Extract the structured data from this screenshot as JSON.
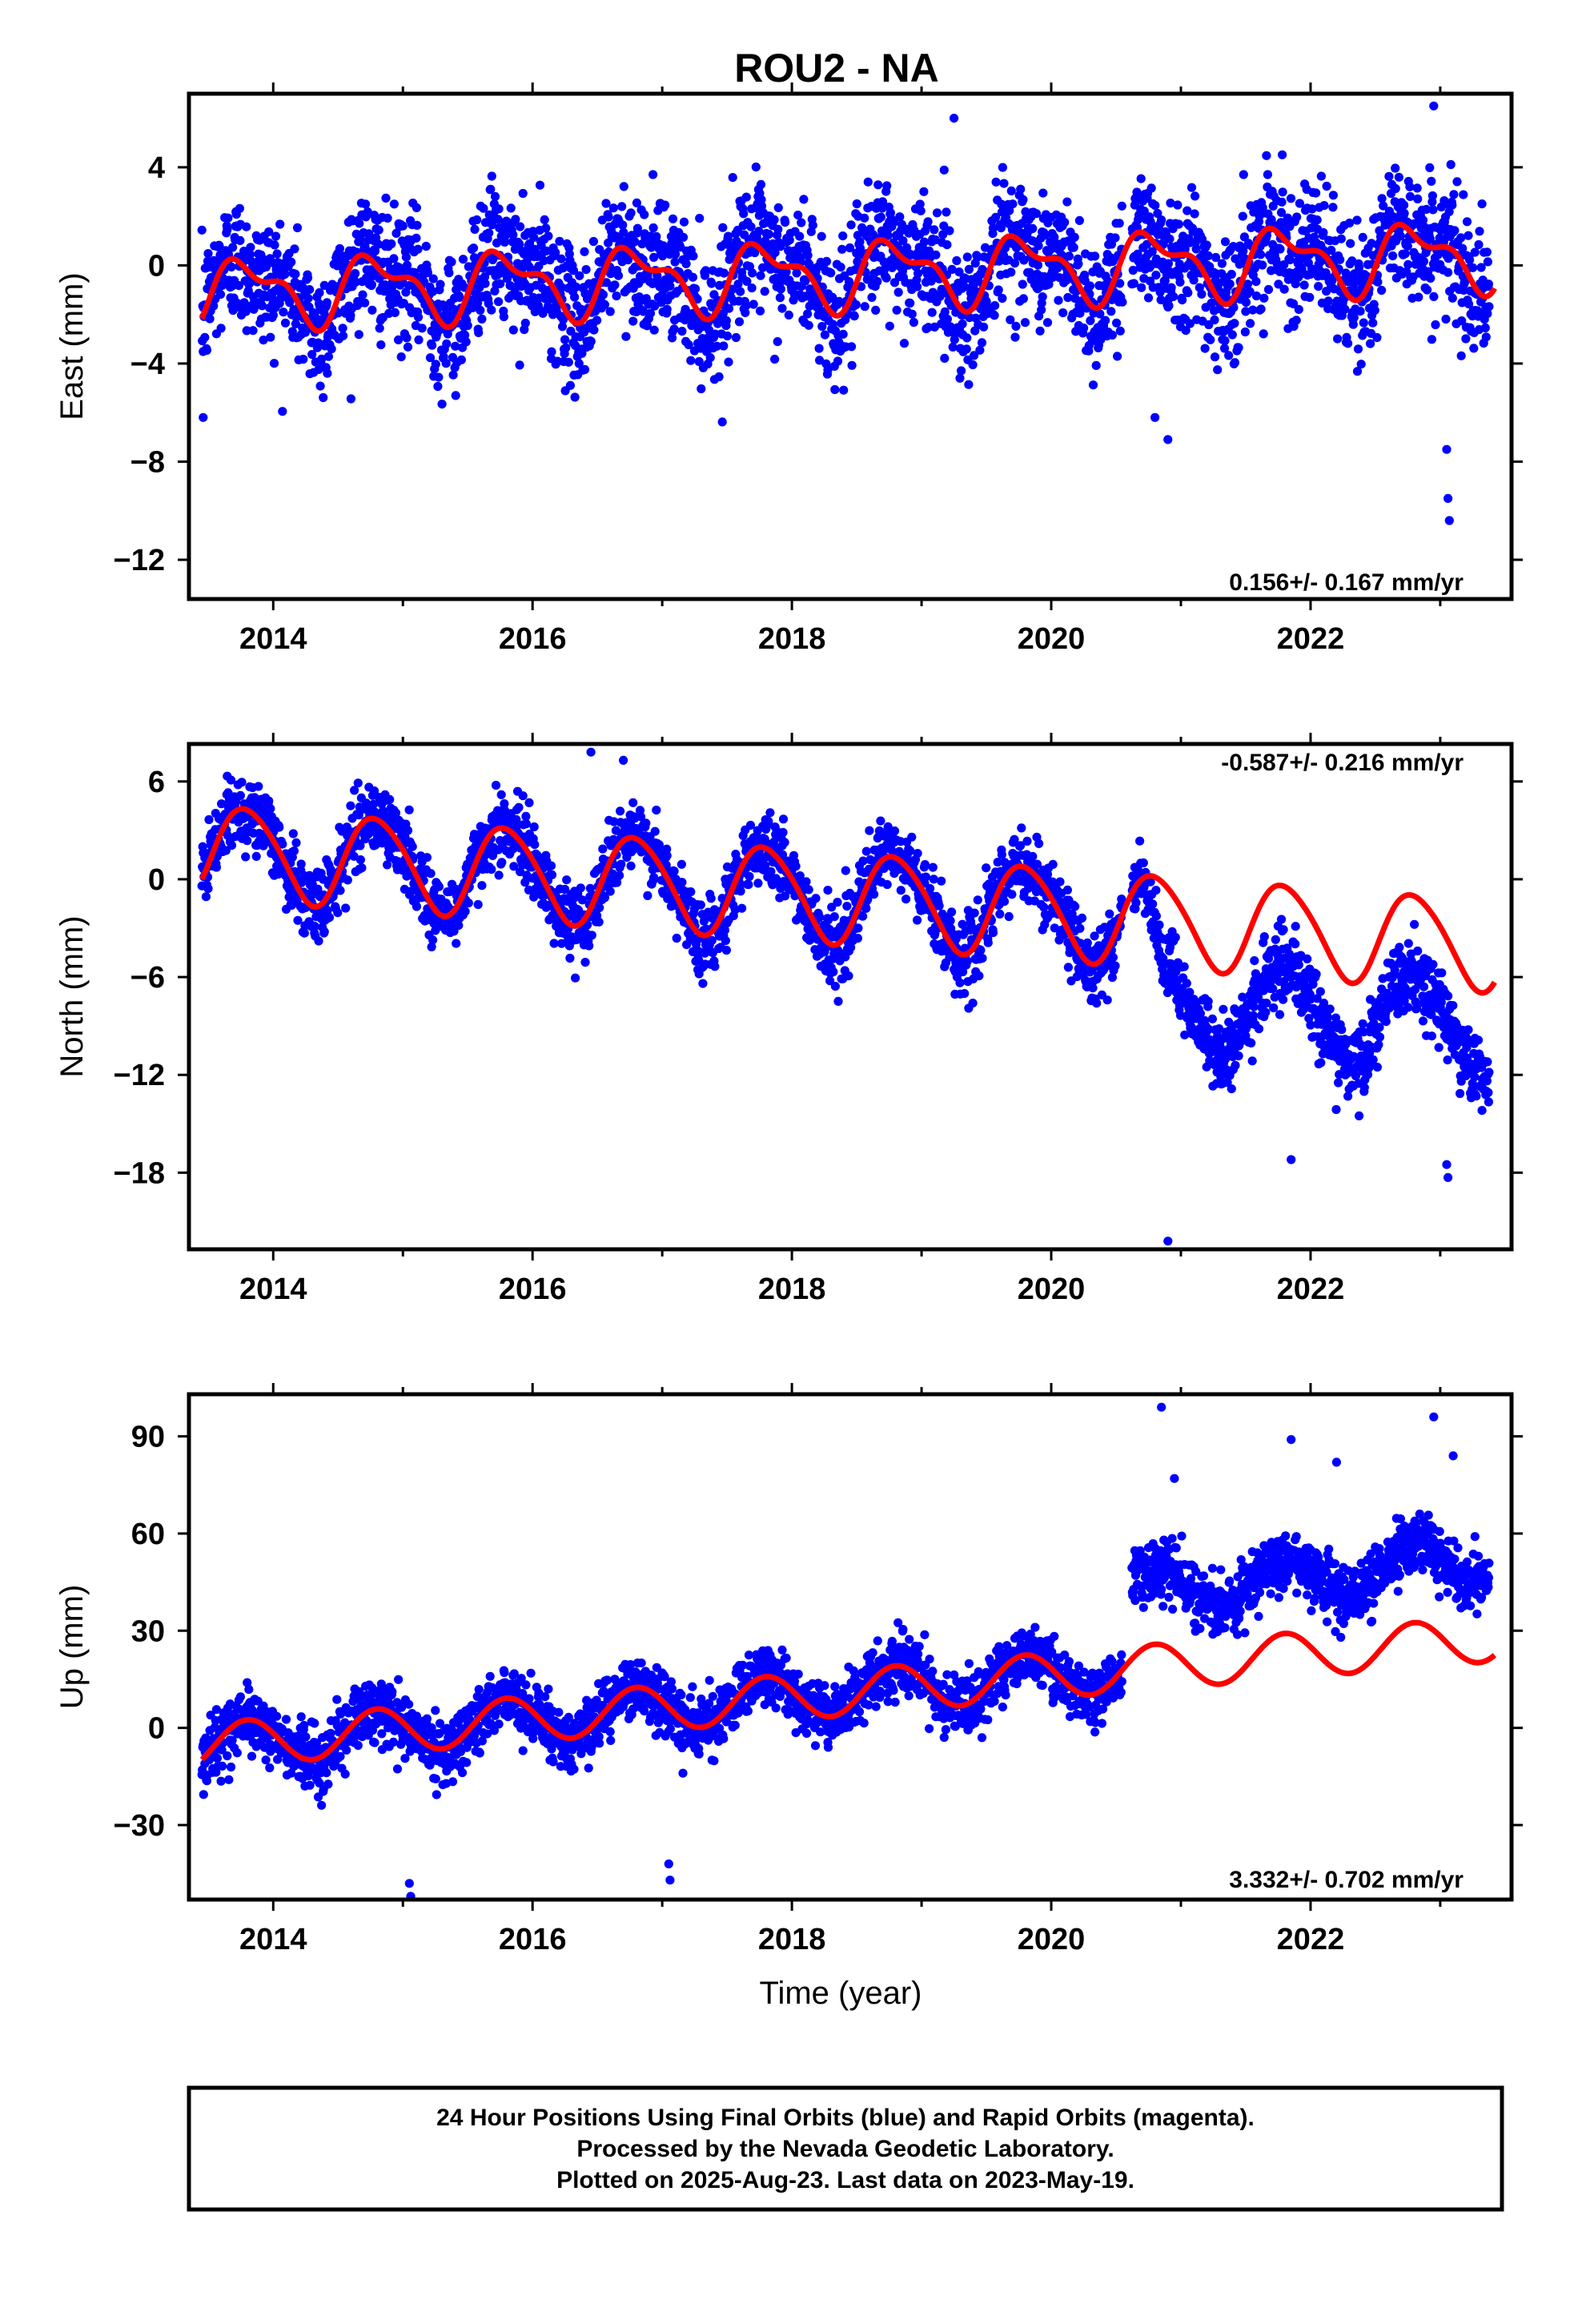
{
  "title": "ROU2 - NA",
  "xlabel": "Time (year)",
  "footer": [
    "24 Hour Positions Using Final Orbits (blue) and Rapid Orbits (magenta).",
    "Processed by the Nevada Geodetic Laboratory.",
    "Plotted on 2025-Aug-23. Last data on 2023-May-19."
  ],
  "colors": {
    "observations": "#0000ff",
    "model": "#ff0000",
    "frame": "#000000"
  },
  "chart_data": [
    {
      "type": "scatter",
      "ylabel": "East (mm)",
      "rate_label": "0.156+/- 0.167 mm/yr",
      "rate_position": "bottom-right",
      "xlim": [
        2013.35,
        2023.55
      ],
      "ylim": [
        -13.6,
        7.0
      ],
      "x_ticks": [
        2014,
        2016,
        2018,
        2020,
        2022
      ],
      "x_tick_labels": [
        "2014",
        "2016",
        "2018",
        "2020",
        "2022"
      ],
      "y_ticks": [
        4,
        0,
        -4,
        -8,
        -12
      ],
      "y_tick_labels": [
        "4",
        "0",
        "−4",
        "−8",
        "−12"
      ],
      "data_span": [
        2013.45,
        2023.38
      ],
      "points_approx": {
        "trend_intercept_2013_5": -1.1,
        "trend_slope_mm_per_yr": 0.156,
        "annual_amplitude": 1.2,
        "semiannual_amplitude": 0.6,
        "scatter": 1.3
      },
      "model": {
        "trend_intercept_2013_5": -1.1,
        "trend_slope_mm_per_yr": 0.156,
        "annual_amplitude": 1.2,
        "semiannual_amplitude": 0.6,
        "offsets": []
      },
      "outliers": [
        [
          2013.46,
          -6.2
        ],
        [
          2020.8,
          -6.2
        ],
        [
          2020.9,
          -7.1
        ],
        [
          2023.05,
          -7.5
        ],
        [
          2023.06,
          -9.5
        ],
        [
          2023.07,
          -10.4
        ],
        [
          2022.95,
          6.5
        ],
        [
          2019.25,
          6.0
        ]
      ]
    },
    {
      "type": "scatter",
      "ylabel": "North (mm)",
      "rate_label": "-0.587+/- 0.216 mm/yr",
      "rate_position": "top-right",
      "xlim": [
        2013.35,
        2023.55
      ],
      "ylim": [
        -22.7,
        8.3
      ],
      "x_ticks": [
        2014,
        2016,
        2018,
        2020,
        2022
      ],
      "x_tick_labels": [
        "2014",
        "2016",
        "2018",
        "2020",
        "2022"
      ],
      "y_ticks": [
        6,
        0,
        -6,
        -12,
        -18
      ],
      "y_tick_labels": [
        "6",
        "0",
        "−6",
        "−12",
        "−18"
      ],
      "data_span": [
        2013.45,
        2023.38
      ],
      "points_approx": {
        "trend_intercept_2013_5": 1.8,
        "trend_slope_mm_per_yr": -0.587,
        "annual_amplitude": 2.8,
        "semiannual_amplitude": 0.3,
        "scatter": 1.1,
        "step_after_2020_7": -5.0
      },
      "model": {
        "trend_intercept_2013_5": 1.8,
        "trend_slope_mm_per_yr": -0.587,
        "annual_amplitude": 2.8,
        "semiannual_amplitude": 0.3,
        "offsets": []
      },
      "outliers": [
        [
          2020.9,
          -22.2
        ],
        [
          2021.85,
          -17.2
        ],
        [
          2023.05,
          -17.5
        ],
        [
          2023.06,
          -18.3
        ],
        [
          2016.45,
          7.8
        ],
        [
          2016.7,
          7.3
        ]
      ]
    },
    {
      "type": "scatter",
      "ylabel": "Up (mm)",
      "rate_label": "3.332+/- 0.702 mm/yr",
      "rate_position": "bottom-right",
      "xlim": [
        2013.35,
        2023.55
      ],
      "ylim": [
        -53,
        103
      ],
      "x_ticks": [
        2014,
        2016,
        2018,
        2020,
        2022
      ],
      "x_tick_labels": [
        "2014",
        "2016",
        "2018",
        "2020",
        "2022"
      ],
      "y_ticks": [
        90,
        60,
        30,
        0,
        -30
      ],
      "y_tick_labels": [
        "90",
        "60",
        "30",
        "0",
        "−30"
      ],
      "data_span": [
        2013.45,
        2023.38
      ],
      "points_approx": {
        "trend_intercept_2013_5": -5.5,
        "trend_slope_mm_per_yr": 3.332,
        "annual_amplitude": 7.0,
        "semiannual_amplitude": 0.0,
        "scatter": 4.5,
        "step_after_2020_6": 24.0
      },
      "model": {
        "trend_intercept_2013_5": -5.5,
        "trend_slope_mm_per_yr": 3.332,
        "annual_amplitude": 7.0,
        "semiannual_amplitude": 0.0,
        "offsets": []
      },
      "outliers": [
        [
          2020.85,
          99
        ],
        [
          2020.95,
          77
        ],
        [
          2021.85,
          89
        ],
        [
          2022.2,
          82
        ],
        [
          2022.95,
          96
        ],
        [
          2023.1,
          84
        ],
        [
          2015.05,
          -48
        ],
        [
          2015.06,
          -52
        ],
        [
          2017.05,
          -42
        ],
        [
          2017.06,
          -47
        ]
      ]
    }
  ]
}
